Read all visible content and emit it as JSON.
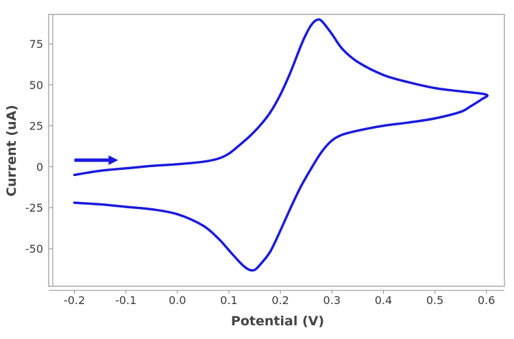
{
  "chart_data": {
    "type": "line",
    "title": "",
    "xlabel": "Potential (V)",
    "ylabel": "Current (uA)",
    "xlim": [
      -0.25,
      0.635
    ],
    "ylim": [
      -73,
      93
    ],
    "grid": false,
    "x_ticks": [
      -0.2,
      -0.1,
      0.0,
      0.1,
      0.2,
      0.3,
      0.4,
      0.5,
      0.6
    ],
    "x_tick_labels": [
      "-0.2",
      "-0.1",
      "0.0",
      "0.1",
      "0.2",
      "0.3",
      "0.4",
      "0.5",
      "0.6"
    ],
    "y_ticks": [
      -50,
      -25,
      0,
      25,
      50,
      75
    ],
    "y_tick_labels": [
      "-50",
      "-25",
      "0",
      "25",
      "50",
      "75"
    ],
    "arrow": {
      "direction": "right",
      "x_start": -0.2,
      "x_end": -0.115,
      "y": 4
    },
    "colors": {
      "series": "#1a1adc",
      "frame": "#a8a8a8",
      "axis": "#888888"
    },
    "series": [
      {
        "x": [
          -0.2,
          -0.15,
          -0.1,
          -0.05,
          0.0,
          0.05,
          0.08,
          0.1,
          0.12,
          0.14,
          0.16,
          0.18,
          0.2,
          0.22,
          0.24,
          0.25,
          0.26,
          0.27,
          0.28,
          0.3,
          0.32,
          0.35,
          0.4,
          0.45,
          0.5,
          0.55,
          0.6,
          0.59,
          0.57,
          0.55,
          0.5,
          0.45,
          0.4,
          0.35,
          0.32,
          0.3,
          0.28,
          0.26,
          0.24,
          0.22,
          0.2,
          0.18,
          0.16,
          0.15,
          0.14,
          0.13,
          0.12,
          0.1,
          0.08,
          0.05,
          0.0,
          -0.05,
          -0.1,
          -0.15,
          -0.2
        ],
        "y": [
          -5,
          -2.5,
          -1,
          0.5,
          1.5,
          3,
          5,
          8,
          13,
          18.5,
          25,
          33,
          44,
          58,
          74,
          81,
          86.5,
          89.5,
          89,
          81,
          72,
          64,
          56,
          51.5,
          48,
          46,
          44,
          41,
          37,
          33.5,
          29.5,
          27,
          25,
          22,
          19.5,
          16,
          9,
          -1,
          -12,
          -25,
          -39,
          -52,
          -60,
          -63,
          -63,
          -61,
          -58,
          -51,
          -44,
          -36,
          -29,
          -26,
          -24.5,
          -23,
          -22
        ]
      }
    ]
  }
}
